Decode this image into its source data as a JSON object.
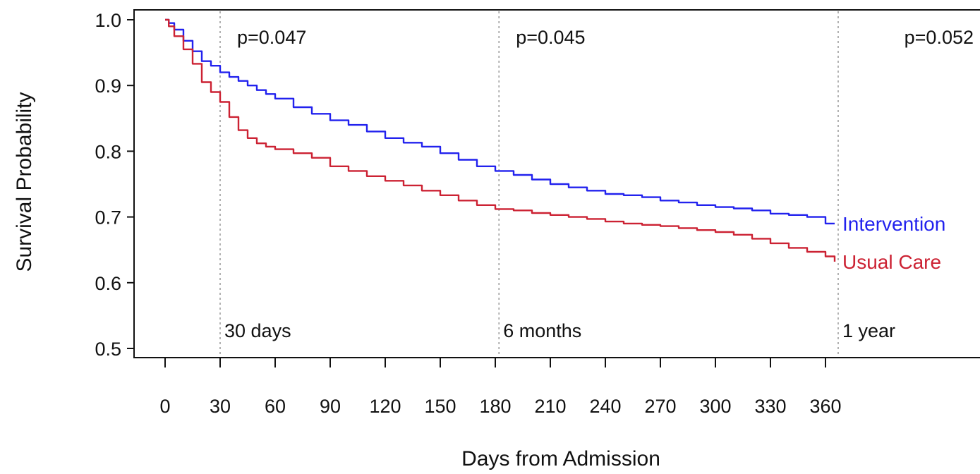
{
  "chart_data": {
    "type": "line",
    "xlabel": "Days from Admission",
    "ylabel": "Survival Probability",
    "xlim": [
      0,
      365
    ],
    "ylim": [
      0.5,
      1.0
    ],
    "x_ticks": [
      0,
      30,
      60,
      90,
      120,
      150,
      180,
      210,
      240,
      270,
      300,
      330,
      360
    ],
    "x_tick_labels": [
      "0",
      "30",
      "60",
      "90",
      "120",
      "150",
      "180",
      "210",
      "240",
      "270",
      "300",
      "330",
      "360"
    ],
    "y_ticks": [
      0.5,
      0.6,
      0.7,
      0.8,
      0.9,
      1.0
    ],
    "y_tick_labels": [
      "0.5",
      "0.6",
      "0.7",
      "0.8",
      "0.9",
      "1.0"
    ],
    "grid": false,
    "reference_lines": [
      {
        "x": 30,
        "label": "30 days",
        "pvalue": "p=0.047"
      },
      {
        "x": 182,
        "label": "6 months",
        "pvalue": "p=0.045"
      },
      {
        "x": 365,
        "label": "1 year",
        "pvalue": "p=0.052"
      }
    ],
    "series": [
      {
        "name": "Intervention",
        "color": "#2222ee",
        "x": [
          0,
          2,
          5,
          10,
          15,
          20,
          25,
          30,
          35,
          40,
          45,
          50,
          55,
          60,
          70,
          80,
          90,
          100,
          110,
          120,
          130,
          140,
          150,
          160,
          170,
          180,
          190,
          200,
          210,
          220,
          230,
          240,
          250,
          260,
          270,
          280,
          290,
          300,
          310,
          320,
          330,
          340,
          350,
          360,
          365
        ],
        "y": [
          1.0,
          0.995,
          0.985,
          0.968,
          0.952,
          0.937,
          0.93,
          0.92,
          0.913,
          0.907,
          0.9,
          0.893,
          0.887,
          0.88,
          0.867,
          0.857,
          0.847,
          0.84,
          0.83,
          0.82,
          0.813,
          0.807,
          0.797,
          0.787,
          0.777,
          0.77,
          0.764,
          0.757,
          0.75,
          0.745,
          0.74,
          0.735,
          0.733,
          0.73,
          0.725,
          0.722,
          0.718,
          0.715,
          0.713,
          0.71,
          0.705,
          0.703,
          0.7,
          0.69,
          0.69
        ]
      },
      {
        "name": "Usual Care",
        "color": "#cc2233",
        "x": [
          0,
          2,
          5,
          10,
          15,
          20,
          25,
          30,
          35,
          40,
          45,
          50,
          55,
          60,
          70,
          80,
          90,
          100,
          110,
          120,
          130,
          140,
          150,
          160,
          170,
          180,
          190,
          200,
          210,
          220,
          230,
          240,
          250,
          260,
          270,
          280,
          290,
          300,
          310,
          320,
          330,
          340,
          350,
          360,
          365
        ],
        "y": [
          1.0,
          0.99,
          0.975,
          0.955,
          0.933,
          0.905,
          0.89,
          0.875,
          0.852,
          0.832,
          0.82,
          0.812,
          0.807,
          0.803,
          0.797,
          0.79,
          0.777,
          0.77,
          0.762,
          0.755,
          0.748,
          0.74,
          0.733,
          0.725,
          0.718,
          0.712,
          0.71,
          0.706,
          0.703,
          0.7,
          0.697,
          0.693,
          0.69,
          0.688,
          0.686,
          0.683,
          0.68,
          0.677,
          0.673,
          0.667,
          0.66,
          0.653,
          0.647,
          0.64,
          0.632
        ]
      }
    ]
  }
}
